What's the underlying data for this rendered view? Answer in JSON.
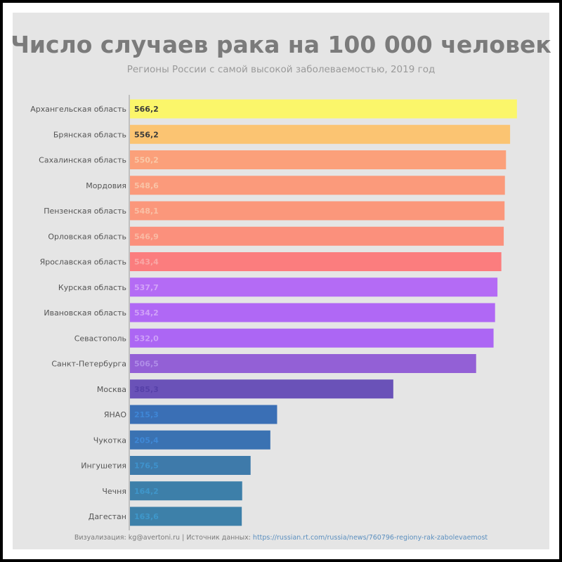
{
  "title": "Число случаев рака на 100 000 человек",
  "subtitle": "Регионы России с самой высокой заболеваемостью, 2019 год",
  "footer": {
    "text": "Визуализация: kg@avertoni.ru | Источник данных: ",
    "link": "https://russian.rt.com/russia/news/760796-regiony-rak-zabolevaemost"
  },
  "chart_data": {
    "type": "bar",
    "orientation": "horizontal",
    "categories": [
      "Архангельская область",
      "Брянская область",
      "Сахалинская область",
      "Мордовия",
      "Пензенская область",
      "Орловская область",
      "Ярославская область",
      "Курская область",
      "Ивановская область",
      "Севастополь",
      "Санкт-Петербурга",
      "Москва",
      "ЯНАО",
      "Чукотка",
      "Ингушетия",
      "Чечня",
      "Дагестан"
    ],
    "values": [
      566.2,
      556.2,
      550.2,
      548.6,
      548.1,
      546.9,
      543.4,
      537.7,
      534.2,
      532.0,
      506.5,
      385.3,
      215.3,
      205.4,
      176.5,
      164.2,
      163.6
    ],
    "value_labels": [
      "566,2",
      "556,2",
      "550,2",
      "548,6",
      "548,1",
      "546,9",
      "543,4",
      "537,7",
      "534,2",
      "532,0",
      "506,5",
      "385,3",
      "215,3",
      "205,4",
      "176,5",
      "164,2",
      "163,6"
    ],
    "bar_colors": [
      "#fbf66a",
      "#fbc472",
      "#fba07a",
      "#fb9a7b",
      "#fb977b",
      "#fb907c",
      "#fb7d7e",
      "#b46bf5",
      "#b068f5",
      "#ac66f4",
      "#9360d6",
      "#6a52b8",
      "#3a6fb5",
      "#3a72b2",
      "#3e7aaa",
      "#3d7fa9",
      "#3d80a9"
    ],
    "label_colors": [
      "#3b3b3b",
      "#3b3b3b",
      "#f9c9a8",
      "#f9c3a6",
      "#f9c0a6",
      "#f9baa4",
      "#f9a8a6",
      "#d3a4f8",
      "#d0a2f8",
      "#cda0f8",
      "#b08ee8",
      "#5640a8",
      "#3f86d6",
      "#3f88d6",
      "#3f92cc",
      "#3f96ca",
      "#3f97ca"
    ],
    "xlim": [
      0,
      590
    ],
    "grid": false,
    "legend": "none"
  }
}
